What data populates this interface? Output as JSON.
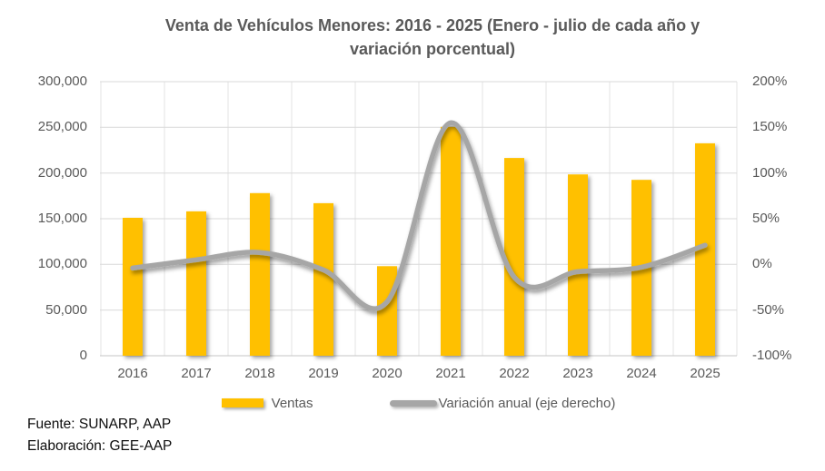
{
  "title": {
    "line1": "Venta de Vehículos Menores: 2016 - 2025 (Enero - julio de cada año y",
    "line2": "variación porcentual)"
  },
  "chart_data": {
    "type": "combo-bar-line",
    "title": "Venta de Vehículos Menores: 2016 - 2025 (Enero - julio de cada año y variación porcentual)",
    "categories": [
      "2016",
      "2017",
      "2018",
      "2019",
      "2020",
      "2021",
      "2022",
      "2023",
      "2024",
      "2025"
    ],
    "series": [
      {
        "name": "Ventas",
        "type": "bar",
        "axis": "left",
        "color": "#FFC000",
        "values": [
          151000,
          158000,
          178000,
          167000,
          98000,
          250500,
          216500,
          198500,
          192500,
          232500
        ]
      },
      {
        "name": "Variación anual (eje derecho)",
        "type": "line",
        "axis": "right",
        "color": "#A6A6A6",
        "values_pct": [
          -4,
          5,
          13,
          -6,
          -41,
          155,
          -14,
          -8,
          -3,
          21
        ]
      }
    ],
    "left_axis": {
      "min": 0,
      "max": 300000,
      "step": 50000,
      "tick_labels": [
        "300,000",
        "250,000",
        "200,000",
        "150,000",
        "100,000",
        "50,000",
        "0"
      ]
    },
    "right_axis": {
      "min": -100,
      "max": 200,
      "step": 50,
      "tick_labels": [
        "200%",
        "150%",
        "100%",
        "50%",
        "0%",
        "-50%",
        "-100%"
      ]
    },
    "legend_position": "bottom",
    "gridlines": true
  },
  "legend": {
    "ventas": "Ventas",
    "variacion": "Variación anual (eje derecho)"
  },
  "footer": {
    "fuente": "Fuente: SUNARP, AAP",
    "elaboracion": "Elaboración: GEE-AAP"
  },
  "colors": {
    "bar": "#FFC000",
    "line": "#A6A6A6",
    "gridline": "#D9D9D9",
    "axis_text": "#595959",
    "title_text": "#595959",
    "footer_text": "#000000"
  }
}
